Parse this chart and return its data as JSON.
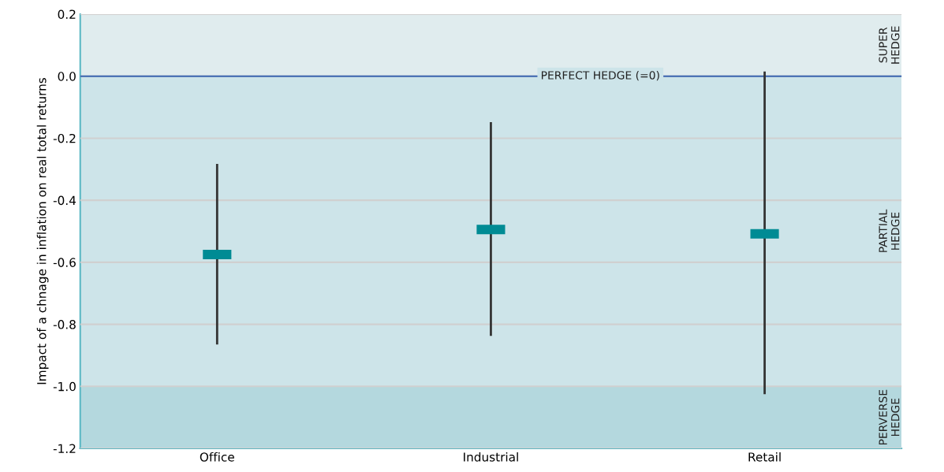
{
  "chart_data": {
    "type": "scatter",
    "ylabel": "Impact of a chnage in inflation on real total returns",
    "categories": [
      "Office",
      "Industrial",
      "Retail"
    ],
    "series": [
      {
        "color": "#008b94",
        "values": [
          -0.575,
          -0.494,
          -0.508
        ],
        "errors": [
          [
            -0.865,
            -0.283
          ],
          [
            -0.837,
            -0.148
          ],
          [
            -1.025,
            0.015
          ]
        ]
      }
    ],
    "marker": "square",
    "ylim": [
      -1.2,
      0.2
    ],
    "yticks": [
      {
        "value": -1.2,
        "label": "-1.2"
      },
      {
        "value": -1.0,
        "label": "-1.0"
      },
      {
        "value": -0.8,
        "label": "-0.8"
      },
      {
        "value": -0.6,
        "label": "-0.6"
      },
      {
        "value": -0.4,
        "label": "-0.4"
      },
      {
        "value": -0.2,
        "label": "-0.2"
      },
      {
        "value": 0.0,
        "label": "0.0"
      },
      {
        "value": 0.2,
        "label": "0.2"
      }
    ],
    "grid": "y",
    "ref_lines": [
      {
        "axis": "y",
        "value": 0,
        "label": "PERFECT HEDGE (=0)",
        "color": "#3a64b0"
      }
    ],
    "bands": [
      {
        "axis": "y",
        "from": 0,
        "to": 0.2,
        "label": "SUPER\nHEDGE",
        "color": "#e0ecee"
      },
      {
        "axis": "y",
        "from": -1.0,
        "to": 0,
        "label": "PARTIAL\nHEDGE",
        "color": "#cde4e9"
      },
      {
        "axis": "y",
        "from": -1.2,
        "to": -1.0,
        "label": "PERVERSE\nHEDGE",
        "color": "#b4d8de"
      }
    ]
  }
}
